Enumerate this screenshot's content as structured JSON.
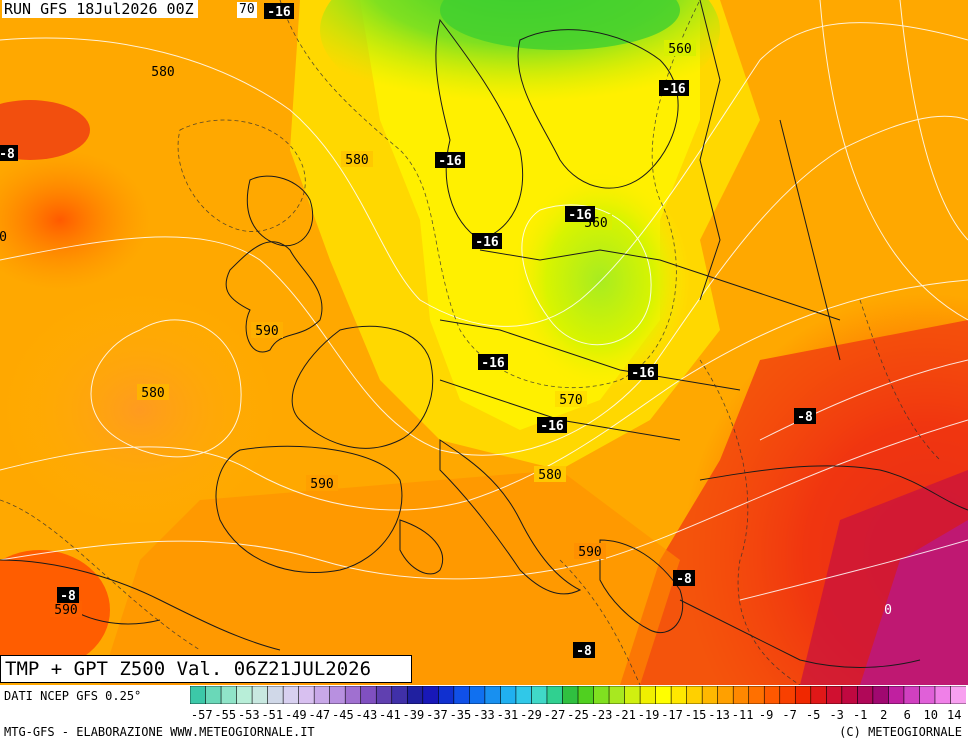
{
  "header": {
    "run": "RUN GFS 18Jul2026 00Z",
    "corner": "70"
  },
  "title": "TMP + GPT Z500 Val. 06Z21JUL2026",
  "footer": {
    "source": "DATI NCEP GFS 0.25°",
    "credit_left": "MTG-GFS - ELABORAZIONE WWW.METEOGIORNALE.IT",
    "credit_right": "(C) METEOGIORNALE"
  },
  "map": {
    "gpt_labels": [
      "580",
      "580",
      "560",
      "560",
      "590",
      "580",
      "570",
      "580",
      "590",
      "590",
      "590",
      "0"
    ],
    "temp_labels": [
      "-16",
      "-16",
      "-16",
      "-16",
      "-16",
      "-16",
      "-16",
      "-16",
      "-8",
      "-8",
      "-8",
      "-8",
      "-8"
    ],
    "edge_labels": [
      "8",
      "0"
    ]
  },
  "scale": {
    "labels": [
      "-57",
      "-55",
      "-53",
      "-51",
      "-49",
      "-47",
      "-45",
      "-43",
      "-41",
      "-39",
      "-37",
      "-35",
      "-33",
      "-31",
      "-29",
      "-27",
      "-25",
      "-23",
      "-21",
      "-19",
      "-17",
      "-15",
      "-13",
      "-11",
      "-9",
      "-7",
      "-5",
      "-3",
      "-1",
      "2",
      "6",
      "10",
      "14"
    ],
    "colors": [
      "#3cc8a8",
      "#6ad8b8",
      "#90e4c8",
      "#b8eed8",
      "#c8e8e0",
      "#d0d8e8",
      "#d8d0f0",
      "#d8c0f0",
      "#c8a8e8",
      "#b890e0",
      "#a070d0",
      "#8050c0",
      "#6040b0",
      "#4030a8",
      "#2020a0",
      "#1818b8",
      "#1030d0",
      "#1050e8",
      "#1070f0",
      "#1890f0",
      "#20b0f0",
      "#30c8e8",
      "#40d8c8",
      "#30d090",
      "#30c040",
      "#50d020",
      "#80e020",
      "#a8e820",
      "#d0f010",
      "#f0f000",
      "#ffff00",
      "#ffe800",
      "#ffd000",
      "#ffb800",
      "#ffa000",
      "#ff8800",
      "#ff7000",
      "#ff5800",
      "#f84000",
      "#f02800",
      "#e01818",
      "#d01030",
      "#c00840",
      "#b00858",
      "#a00870",
      "#c020a0",
      "#d040c0",
      "#e060d8",
      "#f080e8",
      "#f8a0f0"
    ]
  },
  "colors": {
    "field_cold": "#30d040",
    "field_cool": "#b8f000",
    "field_mid": "#ffe000",
    "field_warm": "#ffb000",
    "field_hot": "#ff7000",
    "field_veryhot": "#f02810",
    "field_extreme": "#c01050"
  }
}
